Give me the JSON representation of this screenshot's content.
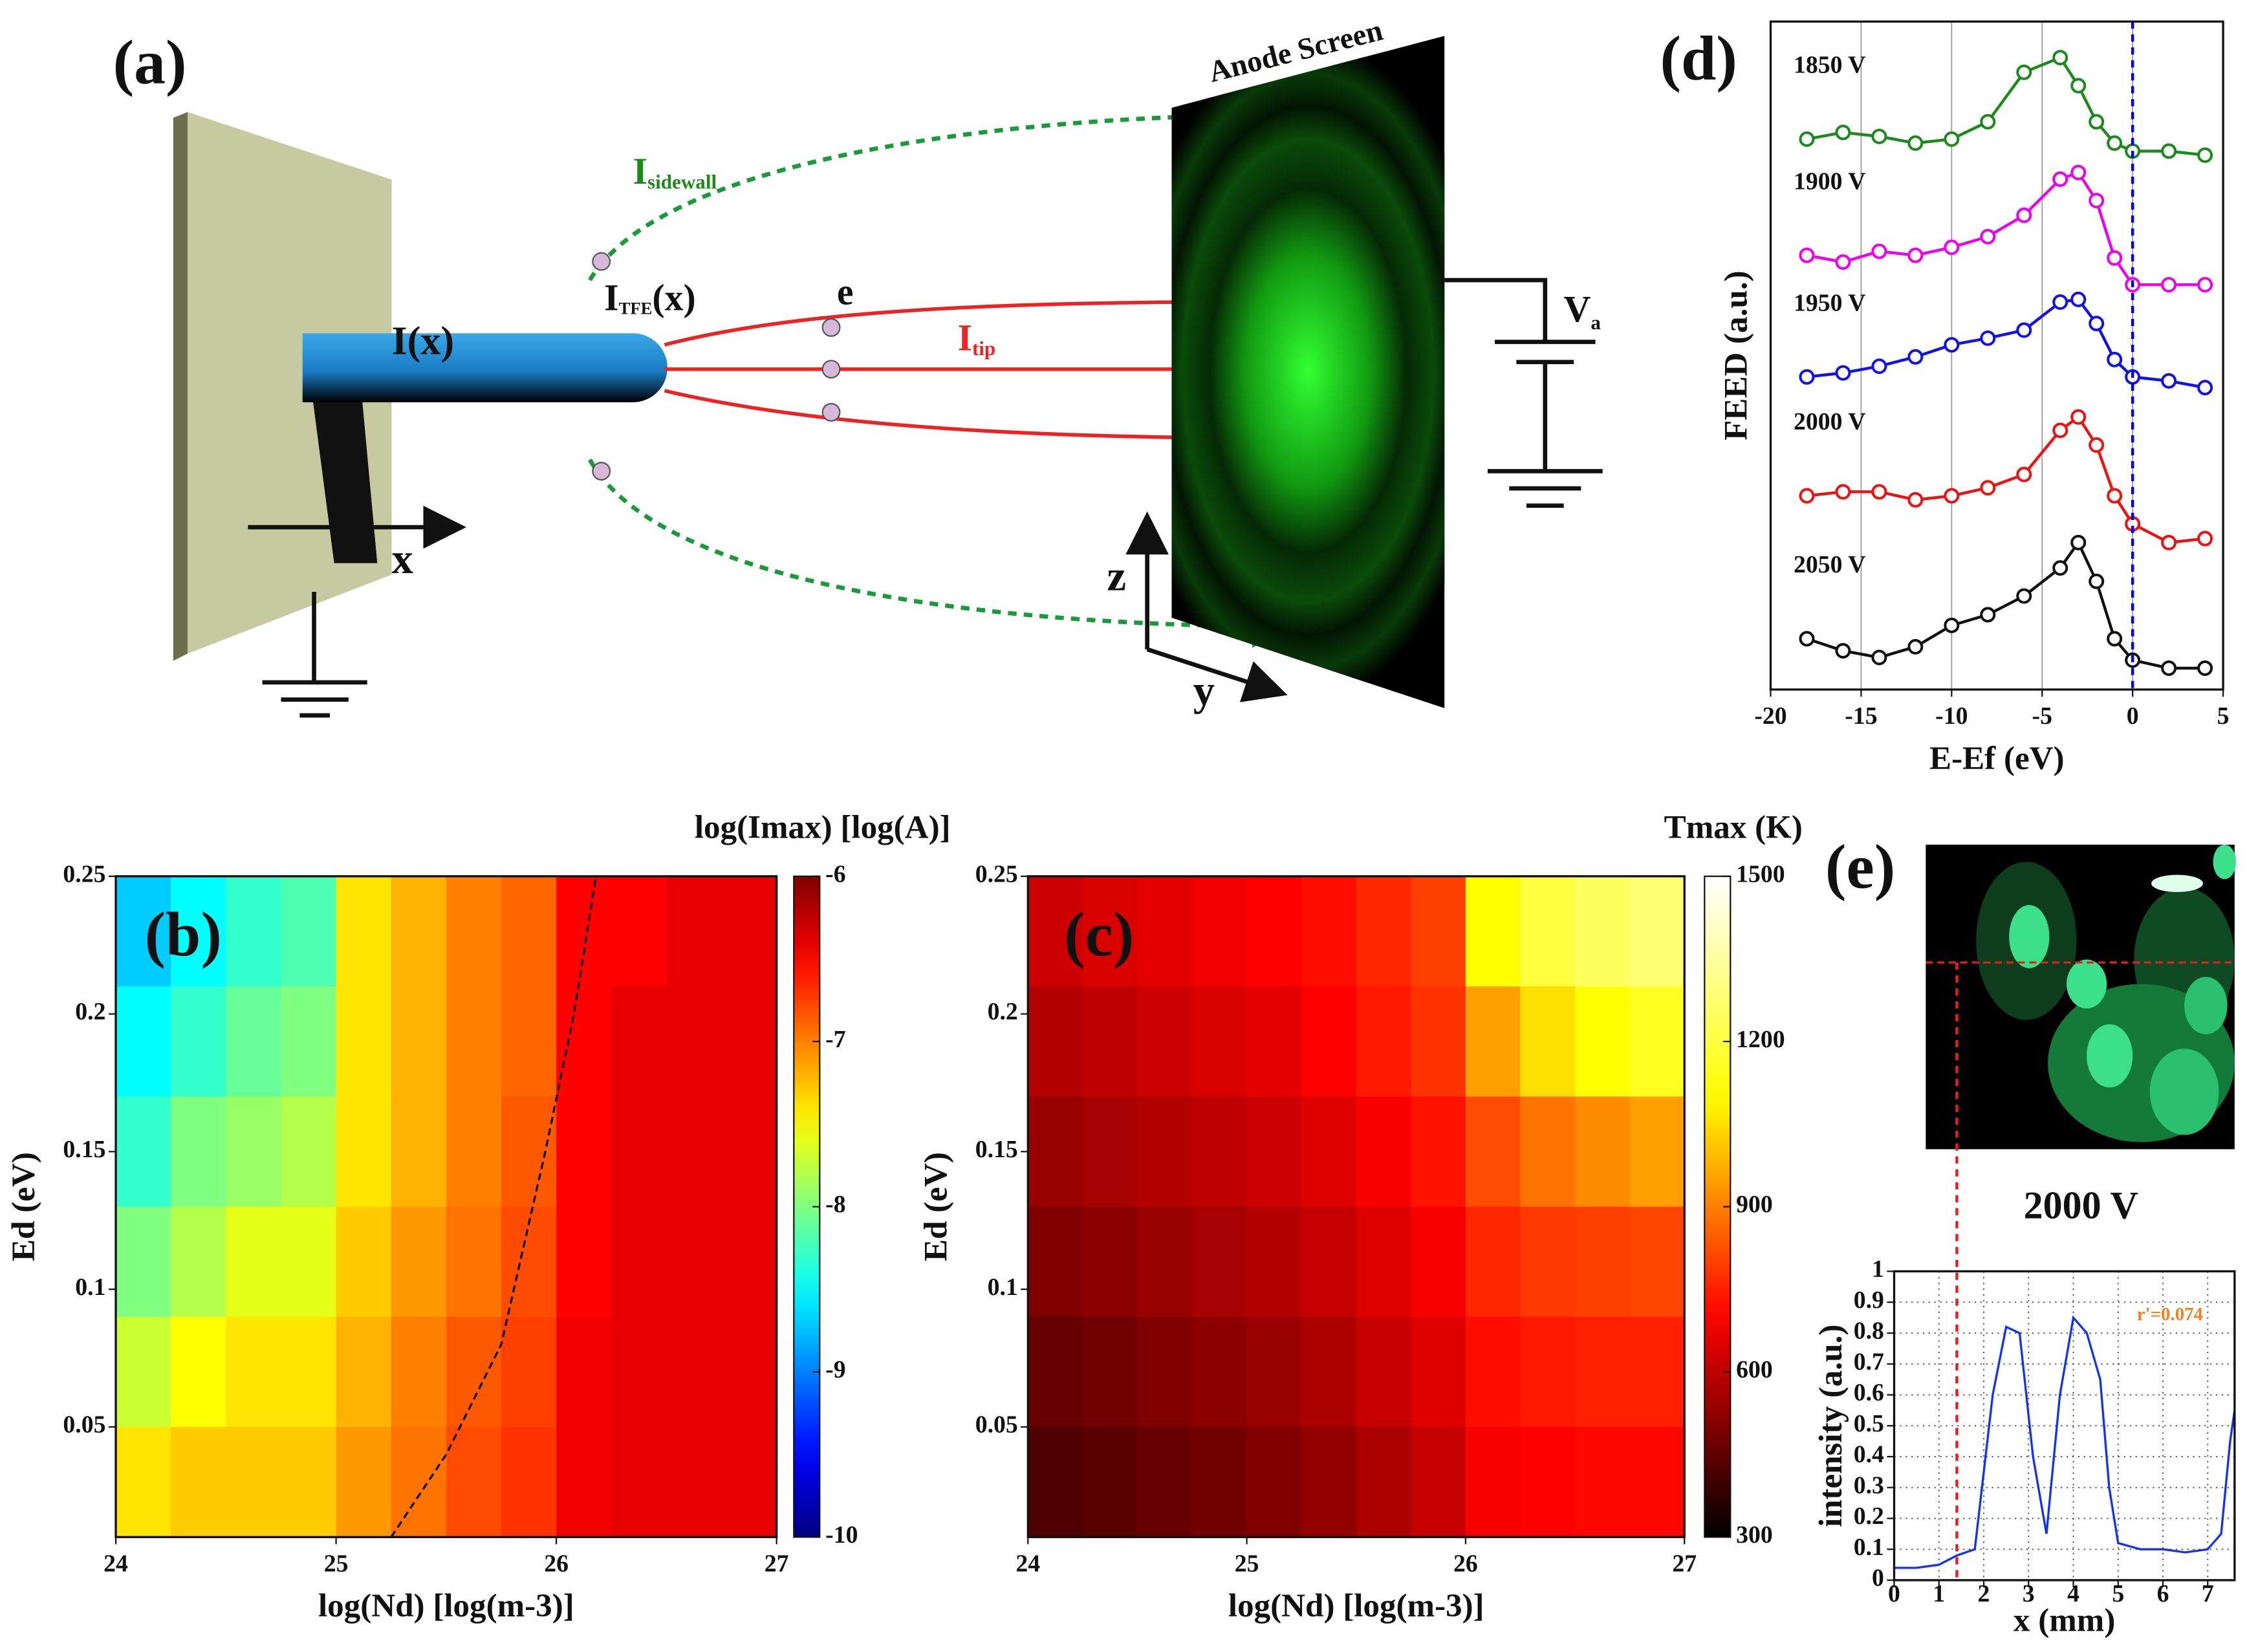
{
  "diagram": {
    "panel": "(a)",
    "screen": "Anode Screen",
    "sidewall": {
      "main": "I",
      "sub": "sidewall"
    },
    "tfe": {
      "main": "I",
      "sub": "TFE",
      "rest": "(x)"
    },
    "electron": "e",
    "rod": "I(x)",
    "tip": {
      "main": "I",
      "sub": "tip"
    },
    "axis_x": "x",
    "axis_z": "z",
    "axis_y": "y",
    "anode": {
      "main": "V",
      "sub": "a"
    }
  },
  "chart_data": [
    {
      "type": "line",
      "panel": "(d)",
      "xlabel": "E-Ef (eV)",
      "ylabel": "FEED (a.u.)",
      "xlim": [
        -20,
        5
      ],
      "xticks": [
        -20,
        -15,
        -10,
        -5,
        0,
        5
      ],
      "ylim": [
        0,
        5
      ],
      "grid": true,
      "vline": 0,
      "vline_color": "#0000ee",
      "x": [
        -18,
        -16,
        -14,
        -12,
        -10,
        -8,
        -6,
        -4,
        -3,
        -2,
        -1,
        0,
        2,
        4
      ],
      "series": [
        {
          "name": "1850 V",
          "color": "#1a8a1a",
          "values": [
            4.12,
            4.17,
            4.14,
            4.09,
            4.12,
            4.25,
            4.62,
            4.73,
            4.52,
            4.25,
            4.09,
            4.03,
            4.03,
            4.0
          ]
        },
        {
          "name": "1900 V",
          "color": "#ee00ee",
          "values": [
            3.25,
            3.2,
            3.28,
            3.25,
            3.31,
            3.39,
            3.55,
            3.82,
            3.87,
            3.66,
            3.23,
            3.03,
            3.03,
            3.03
          ]
        },
        {
          "name": "1950 V",
          "color": "#1111ee",
          "values": [
            2.34,
            2.37,
            2.42,
            2.49,
            2.58,
            2.63,
            2.69,
            2.9,
            2.92,
            2.74,
            2.47,
            2.34,
            2.31,
            2.26
          ]
        },
        {
          "name": "2000 V",
          "color": "#ee1111",
          "values": [
            1.45,
            1.48,
            1.48,
            1.42,
            1.45,
            1.51,
            1.61,
            1.94,
            2.04,
            1.83,
            1.45,
            1.24,
            1.1,
            1.13
          ]
        },
        {
          "name": "2050 V",
          "color": "#111111",
          "values": [
            0.38,
            0.29,
            0.24,
            0.32,
            0.48,
            0.56,
            0.7,
            0.91,
            1.1,
            0.81,
            0.38,
            0.22,
            0.16,
            0.16
          ]
        }
      ]
    },
    {
      "type": "heatmap",
      "panel": "(b)",
      "xlabel": "log(Nd) [log(m-3)]",
      "ylabel": "Ed (eV)",
      "colorbar_label": "log(Imax) [log(A)]",
      "colormap": "jet",
      "xlim": [
        24,
        27
      ],
      "xticks": [
        24,
        25,
        26,
        27
      ],
      "ylim": [
        0.01,
        0.25
      ],
      "yticks": [
        0.05,
        0.1,
        0.15,
        0.2,
        0.25
      ],
      "clim": [
        -10,
        -6
      ],
      "cticks": [
        -10,
        -9,
        -8,
        -7,
        -6
      ],
      "xbins": [
        24,
        24.25,
        24.5,
        24.75,
        25,
        25.25,
        25.5,
        25.75,
        26,
        26.25,
        26.5,
        26.75,
        27
      ],
      "ybins": [
        0.25,
        0.21,
        0.17,
        0.13,
        0.09,
        0.05,
        0.01
      ],
      "values": [
        [
          -8.7,
          -8.5,
          -8.3,
          -8.2,
          -7.4,
          -7.2,
          -7.0,
          -6.9,
          -6.5,
          -6.5,
          -6.4,
          -6.4
        ],
        [
          -8.5,
          -8.3,
          -8.1,
          -8.0,
          -7.4,
          -7.2,
          -7.0,
          -6.9,
          -6.5,
          -6.4,
          -6.4,
          -6.4
        ],
        [
          -8.3,
          -8.0,
          -7.9,
          -7.8,
          -7.4,
          -7.2,
          -7.0,
          -6.85,
          -6.5,
          -6.4,
          -6.4,
          -6.4
        ],
        [
          -8.0,
          -7.8,
          -7.6,
          -7.6,
          -7.3,
          -7.1,
          -6.95,
          -6.8,
          -6.5,
          -6.4,
          -6.4,
          -6.4
        ],
        [
          -7.7,
          -7.5,
          -7.4,
          -7.4,
          -7.2,
          -7.0,
          -6.85,
          -6.75,
          -6.45,
          -6.4,
          -6.4,
          -6.4
        ],
        [
          -7.4,
          -7.3,
          -7.3,
          -7.3,
          -7.1,
          -6.95,
          -6.8,
          -6.7,
          -6.45,
          -6.4,
          -6.4,
          -6.4
        ]
      ],
      "contour": {
        "x": [
          25.25,
          25.5,
          25.75,
          25.95,
          26.08,
          26.18
        ],
        "y": [
          0.01,
          0.04,
          0.08,
          0.15,
          0.2,
          0.25
        ]
      }
    },
    {
      "type": "heatmap",
      "panel": "(c)",
      "xlabel": "log(Nd) [log(m-3)]",
      "ylabel": "Ed (eV)",
      "colorbar_label": "Tmax (K)",
      "colormap": "hot",
      "xlim": [
        24,
        27
      ],
      "xticks": [
        24,
        25,
        26,
        27
      ],
      "ylim": [
        0.01,
        0.25
      ],
      "yticks": [
        0.05,
        0.1,
        0.15,
        0.2,
        0.25
      ],
      "clim": [
        300,
        1500
      ],
      "cticks": [
        300,
        600,
        900,
        1200,
        1500
      ],
      "xbins": [
        24,
        24.25,
        24.5,
        24.75,
        25,
        25.25,
        25.5,
        25.75,
        26,
        26.25,
        26.5,
        26.75,
        27
      ],
      "ybins": [
        0.25,
        0.21,
        0.17,
        0.13,
        0.09,
        0.05,
        0.01
      ],
      "values": [
        [
          620,
          640,
          660,
          680,
          700,
          720,
          760,
          800,
          1100,
          1200,
          1250,
          1280
        ],
        [
          580,
          600,
          620,
          640,
          660,
          700,
          740,
          780,
          950,
          1050,
          1100,
          1150
        ],
        [
          540,
          560,
          580,
          600,
          620,
          650,
          690,
          730,
          820,
          880,
          920,
          950
        ],
        [
          500,
          520,
          540,
          560,
          580,
          610,
          650,
          690,
          760,
          790,
          800,
          810
        ],
        [
          460,
          480,
          500,
          520,
          540,
          570,
          610,
          650,
          720,
          740,
          750,
          750
        ],
        [
          420,
          440,
          460,
          480,
          500,
          530,
          570,
          610,
          690,
          700,
          710,
          710
        ]
      ]
    },
    {
      "type": "line",
      "panel": "(e)",
      "image_label": "2000 V",
      "annotation": "r'=0.074",
      "xlabel": "x (mm)",
      "ylabel": "intensity (a.u.)",
      "xlim": [
        0,
        7.6
      ],
      "xticks": [
        0,
        1,
        2,
        3,
        4,
        5,
        6,
        7
      ],
      "ylim": [
        0,
        1
      ],
      "yticks": [
        0,
        0.1,
        0.2,
        0.3,
        0.4,
        0.5,
        0.6,
        0.7,
        0.8,
        0.9,
        1
      ],
      "grid": true,
      "vline": 1.4,
      "vline_color": "#dd2222",
      "x": [
        0,
        0.5,
        1,
        1.4,
        1.8,
        2.2,
        2.5,
        2.8,
        3.1,
        3.4,
        3.7,
        4.0,
        4.3,
        4.6,
        4.8,
        5.0,
        5.5,
        6,
        6.5,
        7,
        7.3,
        7.5,
        7.6
      ],
      "series": [
        {
          "name": "intensity",
          "color": "#1133ee",
          "values": [
            0.04,
            0.04,
            0.05,
            0.08,
            0.1,
            0.6,
            0.82,
            0.8,
            0.4,
            0.15,
            0.6,
            0.85,
            0.8,
            0.65,
            0.3,
            0.12,
            0.1,
            0.1,
            0.09,
            0.1,
            0.15,
            0.45,
            0.55
          ]
        }
      ]
    }
  ]
}
